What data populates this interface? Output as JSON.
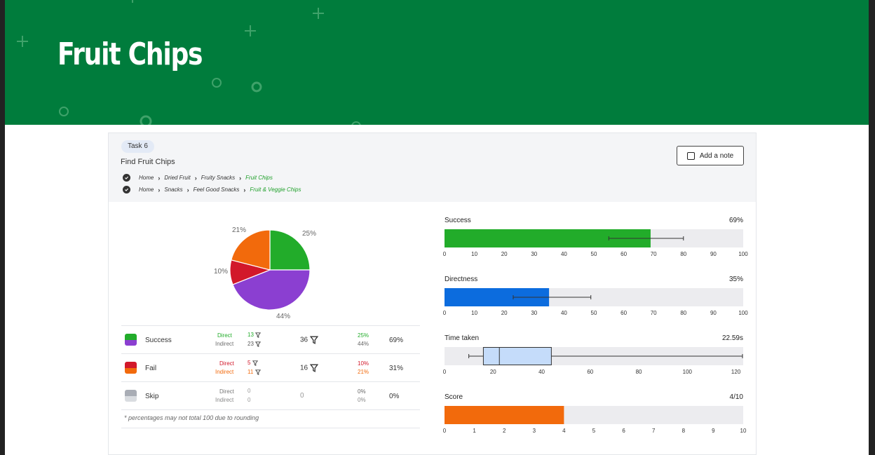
{
  "banner": {
    "title": "Fruit Chips"
  },
  "task": {
    "pill": "Task 6",
    "title": "Find Fruit Chips",
    "note_button": "Add a note",
    "paths": [
      {
        "crumbs": [
          "Home",
          "Dried Fruit",
          "Fruity Snacks"
        ],
        "last": "Fruit Chips"
      },
      {
        "crumbs": [
          "Home",
          "Snacks",
          "Feel Good Snacks"
        ],
        "last": "Fruit & Veggie Chips"
      }
    ]
  },
  "pie": {
    "slices": [
      {
        "name": "direct-success",
        "percent": 25,
        "label": "25%",
        "color": "#22ac2a"
      },
      {
        "name": "indirect-success",
        "percent": 44,
        "label": "44%",
        "color": "#8b3fd1"
      },
      {
        "name": "direct-fail",
        "percent": 10,
        "label": "10%",
        "color": "#d2182a"
      },
      {
        "name": "indirect-fail",
        "percent": 21,
        "label": "21%",
        "color": "#f26a0c"
      }
    ]
  },
  "results": {
    "rows": [
      {
        "label": "Success",
        "colors": [
          "#22ac2a",
          "#8b3fd1"
        ],
        "direct_label": "Direct",
        "indirect_label": "Indirect",
        "direct": "13",
        "indirect": "23",
        "total": "36",
        "direct_pct": "25%",
        "indirect_pct": "44%",
        "pct": "69%",
        "sub_colors": [
          "#22ac2a",
          "#6e6e6e"
        ],
        "count_colors": [
          "#22ac2a",
          "#555"
        ],
        "pct_colors": [
          "#22ac2a",
          "#666"
        ],
        "filter": true
      },
      {
        "label": "Fail",
        "colors": [
          "#d2182a",
          "#f26a0c"
        ],
        "direct_label": "Direct",
        "indirect_label": "Indirect",
        "direct": "5",
        "indirect": "11",
        "total": "16",
        "direct_pct": "10%",
        "indirect_pct": "21%",
        "pct": "31%",
        "sub_colors": [
          "#d2182a",
          "#f26a0c"
        ],
        "count_colors": [
          "#d2182a",
          "#f26a0c"
        ],
        "pct_colors": [
          "#d2182a",
          "#f26a0c"
        ],
        "filter": true
      },
      {
        "label": "Skip",
        "colors": [
          "#a9adb5",
          "#d9dce0"
        ],
        "direct_label": "Direct",
        "indirect_label": "Indirect",
        "direct": "0",
        "indirect": "0",
        "total": "0",
        "direct_pct": "0%",
        "indirect_pct": "0%",
        "pct": "0%",
        "sub_colors": [
          "#777",
          "#888"
        ],
        "count_colors": [
          "#999",
          "#999"
        ],
        "pct_colors": [
          "#666",
          "#888"
        ],
        "filter": false
      }
    ],
    "footnote": "* percentages may not total 100 due to rounding"
  },
  "metrics": [
    {
      "title": "Success",
      "value": "69%",
      "kind": "bar",
      "fill": 69,
      "min": 0,
      "max": 100,
      "color": "#22ac2a",
      "ticks": [
        "0",
        "10",
        "20",
        "30",
        "40",
        "50",
        "60",
        "70",
        "80",
        "90",
        "100"
      ],
      "error_low": 55,
      "error_high": 80
    },
    {
      "title": "Directness",
      "value": "35%",
      "kind": "bar",
      "fill": 35,
      "min": 0,
      "max": 100,
      "color": "#0c6cde",
      "ticks": [
        "0",
        "10",
        "20",
        "30",
        "40",
        "50",
        "60",
        "70",
        "80",
        "90",
        "100"
      ],
      "error_low": 23,
      "error_high": 49
    },
    {
      "title": "Time taken",
      "value": "22.59s",
      "kind": "box",
      "min": 0,
      "max": 123,
      "color": "#c5dcfa",
      "ticks": [
        "0",
        "20",
        "40",
        "60",
        "80",
        "100",
        "120"
      ],
      "whisker_low": 10,
      "q1": 16,
      "median": 22.59,
      "q3": 44,
      "whisker_high": 123
    },
    {
      "title": "Score",
      "value": "4/10",
      "kind": "bar",
      "fill": 4,
      "min": 0,
      "max": 10,
      "color": "#f26a0c",
      "ticks": [
        "0",
        "1",
        "2",
        "3",
        "4",
        "5",
        "6",
        "7",
        "8",
        "9",
        "10"
      ]
    }
  ]
}
